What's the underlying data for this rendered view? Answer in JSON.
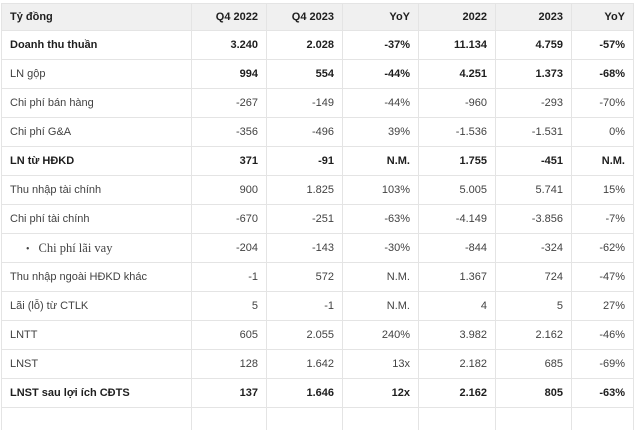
{
  "table": {
    "unit_label": "Tỷ đồng",
    "columns": [
      "Q4 2022",
      "Q4 2023",
      "YoY",
      "2022",
      "2023",
      "YoY"
    ],
    "rows": [
      {
        "label": "Doanh thu thuần",
        "values": [
          "3.240",
          "2.028",
          "-37%",
          "11.134",
          "4.759",
          "-57%"
        ],
        "style": "bold"
      },
      {
        "label": "LN gộp",
        "values": [
          "994",
          "554",
          "-44%",
          "4.251",
          "1.373",
          "-68%"
        ],
        "style": "bold-values"
      },
      {
        "label": "Chi phí bán hàng",
        "values": [
          "-267",
          "-149",
          "-44%",
          "-960",
          "-293",
          "-70%"
        ],
        "style": "normal"
      },
      {
        "label": "Chi phí G&A",
        "values": [
          "-356",
          "-496",
          "39%",
          "-1.536",
          "-1.531",
          "0%"
        ],
        "style": "normal"
      },
      {
        "label": "LN từ HĐKD",
        "values": [
          "371",
          "-91",
          "N.M.",
          "1.755",
          "-451",
          "N.M."
        ],
        "style": "bold"
      },
      {
        "label": "Thu nhập tài chính",
        "values": [
          "900",
          "1.825",
          "103%",
          "5.005",
          "5.741",
          "15%"
        ],
        "style": "normal"
      },
      {
        "label": "Chi phí tài chính",
        "values": [
          "-670",
          "-251",
          "-63%",
          "-4.149",
          "-3.856",
          "-7%"
        ],
        "style": "normal"
      },
      {
        "label": "Chi phí lãi vay",
        "values": [
          "-204",
          "-143",
          "-30%",
          "-844",
          "-324",
          "-62%"
        ],
        "style": "bullet-serif"
      },
      {
        "label": "Thu nhập ngoài HĐKD khác",
        "values": [
          "-1",
          "572",
          "N.M.",
          "1.367",
          "724",
          "-47%"
        ],
        "style": "normal"
      },
      {
        "label": "Lãi (lỗ) từ CTLK",
        "values": [
          "5",
          "-1",
          "N.M.",
          "4",
          "5",
          "27%"
        ],
        "style": "normal"
      },
      {
        "label": "LNTT",
        "values": [
          "605",
          "2.055",
          "240%",
          "3.982",
          "2.162",
          "-46%"
        ],
        "style": "normal"
      },
      {
        "label": "LNST",
        "values": [
          "128",
          "1.642",
          "13x",
          "2.182",
          "685",
          "-69%"
        ],
        "style": "normal"
      },
      {
        "label": "LNST sau lợi ích CĐTS",
        "values": [
          "137",
          "1.646",
          "12x",
          "2.162",
          "805",
          "-63%"
        ],
        "style": "bold"
      },
      {
        "label": "",
        "values": [
          "",
          "",
          "",
          "",
          "",
          ""
        ],
        "style": "partial"
      }
    ],
    "bullet_icon": "•",
    "colors": {
      "header_bg": "#f0f0f0",
      "border": "#e4e4e4",
      "text_strong": "#1e1e1e",
      "text_regular": "#424242"
    }
  }
}
